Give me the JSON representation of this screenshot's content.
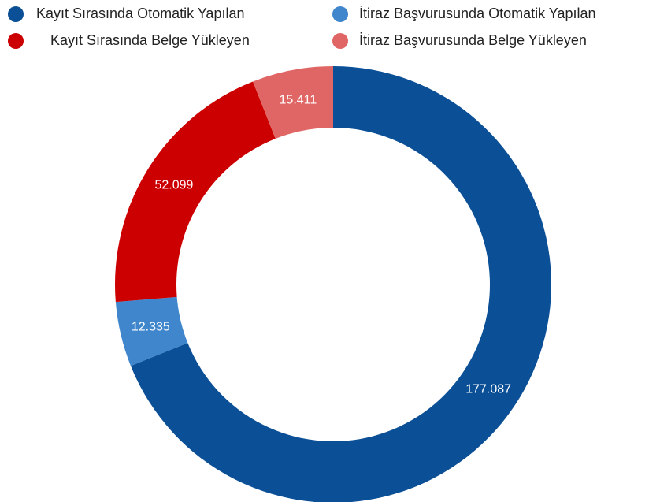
{
  "chart_data": {
    "type": "donut",
    "categories": [
      "Kayıt Sırasında Otomatik Yapılan",
      "İtiraz Başvurusunda Otomatik Yapılan",
      "Kayıt Sırasında Belge Yükleyen",
      "İtiraz Başvurusunda Belge Yükleyen"
    ],
    "values": [
      177087,
      12335,
      52099,
      15411
    ],
    "value_labels": [
      "177.087",
      "12.335",
      "52.099",
      "15.411"
    ],
    "colors": [
      "#0b4f96",
      "#3f86cc",
      "#cc0000",
      "#e06666"
    ],
    "legend": "top"
  }
}
